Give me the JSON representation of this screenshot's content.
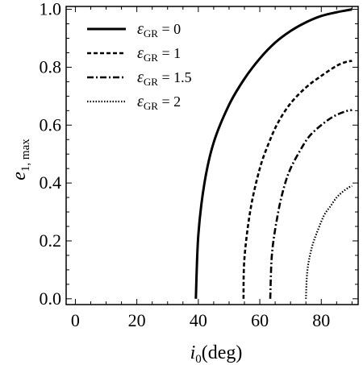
{
  "chart_data": {
    "type": "line",
    "xlabel": {
      "main": "i",
      "sub": "0",
      "unit": "(deg)"
    },
    "ylabel": {
      "main": "e",
      "sub": "1, max"
    },
    "xlim": [
      -3,
      92
    ],
    "ylim": [
      -0.02,
      1.01
    ],
    "xticks": [
      0,
      20,
      40,
      60,
      80
    ],
    "yticks": [
      0.0,
      0.2,
      0.4,
      0.6,
      0.8,
      1.0
    ],
    "xtick_labels": [
      "0",
      "20",
      "40",
      "60",
      "80"
    ],
    "ytick_labels": [
      "0.0",
      "0.2",
      "0.4",
      "0.6",
      "0.8",
      "1.0"
    ],
    "legend_position": "top-left",
    "series": [
      {
        "name": "ε_GR = 0",
        "legend": {
          "symbol": "ε",
          "sub": "GR",
          "rest": " = 0"
        },
        "style": "solid",
        "line_width": 3,
        "x": [
          39.2,
          40,
          42,
          45,
          50,
          55,
          60,
          65,
          70,
          75,
          80,
          85,
          88,
          90
        ],
        "y": [
          0.0,
          0.22,
          0.4,
          0.54,
          0.67,
          0.76,
          0.83,
          0.885,
          0.925,
          0.955,
          0.977,
          0.99,
          0.996,
          1.0
        ]
      },
      {
        "name": "ε_GR = 1",
        "legend": {
          "symbol": "ε",
          "sub": "GR",
          "rest": " = 1"
        },
        "style": "dashed",
        "line_width": 2.6,
        "x": [
          54.7,
          55,
          57,
          60,
          63,
          66,
          70,
          75,
          80,
          85,
          88,
          90
        ],
        "y": [
          0.0,
          0.14,
          0.31,
          0.45,
          0.54,
          0.61,
          0.675,
          0.73,
          0.77,
          0.805,
          0.818,
          0.822
        ]
      },
      {
        "name": "ε_GR = 1.5",
        "legend": {
          "symbol": "ε",
          "sub": "GR",
          "rest": " = 1.5"
        },
        "style": "dashdot",
        "line_width": 2.6,
        "x": [
          63.4,
          64,
          66,
          68,
          70,
          73,
          76,
          80,
          84,
          88,
          90
        ],
        "y": [
          0.0,
          0.16,
          0.3,
          0.39,
          0.45,
          0.51,
          0.56,
          0.6,
          0.63,
          0.648,
          0.652
        ]
      },
      {
        "name": "ε_GR = 2",
        "legend": {
          "symbol": "ε",
          "sub": "GR",
          "rest": " = 2"
        },
        "style": "dotted",
        "line_width": 2.2,
        "x": [
          75.0,
          75.5,
          77,
          79,
          81,
          83,
          85,
          87,
          89,
          90
        ],
        "y": [
          0.0,
          0.1,
          0.18,
          0.24,
          0.29,
          0.32,
          0.35,
          0.37,
          0.385,
          0.39
        ]
      }
    ]
  }
}
